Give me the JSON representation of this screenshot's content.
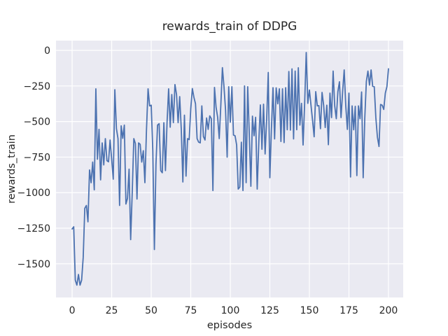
{
  "figure": {
    "title": "rewards_train of DDPG",
    "xlabel": "episodes",
    "ylabel": "rewards_train"
  },
  "chart_data": {
    "type": "line",
    "title": "rewards_train of DDPG",
    "xlabel": "episodes",
    "ylabel": "rewards_train",
    "grid": true,
    "legend": false,
    "xticks": [
      0,
      25,
      50,
      75,
      100,
      125,
      150,
      175,
      200
    ],
    "yticks": [
      0,
      -250,
      -500,
      -750,
      -1000,
      -1250,
      -1500
    ],
    "xlim": [
      -10.2,
      209.3
    ],
    "ylim": [
      -1737,
      69
    ],
    "series": [
      {
        "name": "rewards_train",
        "x_start": 0,
        "x_step": 1,
        "values": [
          -1255,
          -1240,
          -1615,
          -1650,
          -1575,
          -1650,
          -1615,
          -1455,
          -1110,
          -1090,
          -1205,
          -840,
          -930,
          -785,
          -980,
          -270,
          -765,
          -555,
          -910,
          -650,
          -805,
          -620,
          -775,
          -783,
          -630,
          -766,
          -905,
          -276,
          -550,
          -620,
          -1090,
          -530,
          -618,
          -525,
          -1080,
          -1040,
          -835,
          -1330,
          -995,
          -620,
          -655,
          -1045,
          -650,
          -660,
          -785,
          -705,
          -930,
          -560,
          -270,
          -390,
          -385,
          -705,
          -1400,
          -800,
          -525,
          -515,
          -845,
          -860,
          -508,
          -845,
          -508,
          -270,
          -540,
          -310,
          -508,
          -240,
          -310,
          -508,
          -325,
          -555,
          -925,
          -455,
          -884,
          -620,
          -627,
          -410,
          -268,
          -330,
          -375,
          -620,
          -645,
          -650,
          -390,
          -605,
          -630,
          -475,
          -555,
          -460,
          -480,
          -985,
          -260,
          -400,
          -470,
          -620,
          -385,
          -121,
          -255,
          -420,
          -750,
          -255,
          -505,
          -255,
          -595,
          -600,
          -665,
          -975,
          -960,
          -645,
          -985,
          -250,
          -930,
          -255,
          -590,
          -955,
          -462,
          -600,
          -470,
          -975,
          -650,
          -383,
          -695,
          -378,
          -728,
          -480,
          -155,
          -895,
          -550,
          -262,
          -622,
          -263,
          -375,
          -270,
          -640,
          -270,
          -648,
          -262,
          -558,
          -148,
          -560,
          -130,
          -622,
          -145,
          -558,
          -122,
          -525,
          -372,
          -665,
          -372,
          -15,
          -372,
          -278,
          -385,
          -492,
          -607,
          -290,
          -390,
          -388,
          -550,
          -295,
          -385,
          -542,
          -385,
          -663,
          -300,
          -472,
          -145,
          -390,
          -480,
          -290,
          -220,
          -472,
          -292,
          -137,
          -390,
          -555,
          -300,
          -890,
          -390,
          -558,
          -393,
          -880,
          -390,
          -480,
          -292,
          -895,
          -480,
          -219,
          -145,
          -244,
          -137,
          -252,
          -255,
          -472,
          -610,
          -675,
          -380,
          -385,
          -415,
          -300,
          -255,
          -129
        ]
      }
    ],
    "style": {
      "line_color": "#4c72b0",
      "line_width": 1.8,
      "plot_bg": "#eaeaf2",
      "grid_color": "#ffffff",
      "fig_bg": "#ffffff",
      "text_color": "#262626",
      "title_size": 17,
      "tick_size": 14,
      "label_size": 14.5
    }
  }
}
